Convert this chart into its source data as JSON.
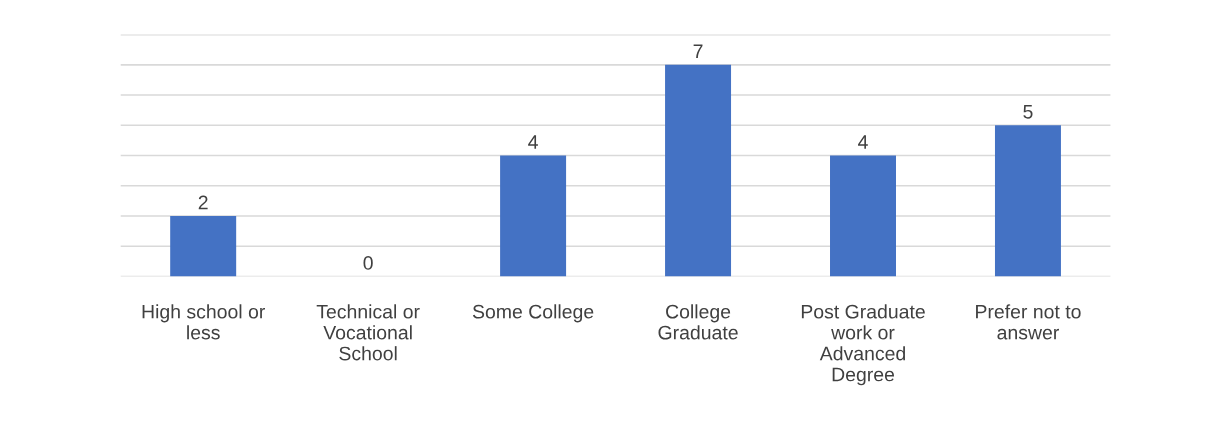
{
  "chart_data": {
    "type": "bar",
    "categories": [
      "High school or\nless",
      "Technical or\nVocational\nSchool",
      "Some College",
      "College\nGraduate",
      "Post Graduate\nwork or\nAdvanced\nDegree",
      "Prefer not to\nanswer"
    ],
    "values": [
      2,
      0,
      4,
      7,
      4,
      5
    ],
    "color": "#4472c4",
    "ylim": [
      0,
      8
    ],
    "yticks": [
      {
        "value": 0,
        "label": null
      },
      {
        "value": 1,
        "label": null
      },
      {
        "value": 2,
        "label": null
      },
      {
        "value": 3,
        "label": null
      },
      {
        "value": 4,
        "label": null
      },
      {
        "value": 5,
        "label": null
      },
      {
        "value": 6,
        "label": null
      },
      {
        "value": 7,
        "label": null
      },
      {
        "value": 8,
        "label": null
      }
    ],
    "tick_labels": "x",
    "grid": "y",
    "data_labels": true
  }
}
